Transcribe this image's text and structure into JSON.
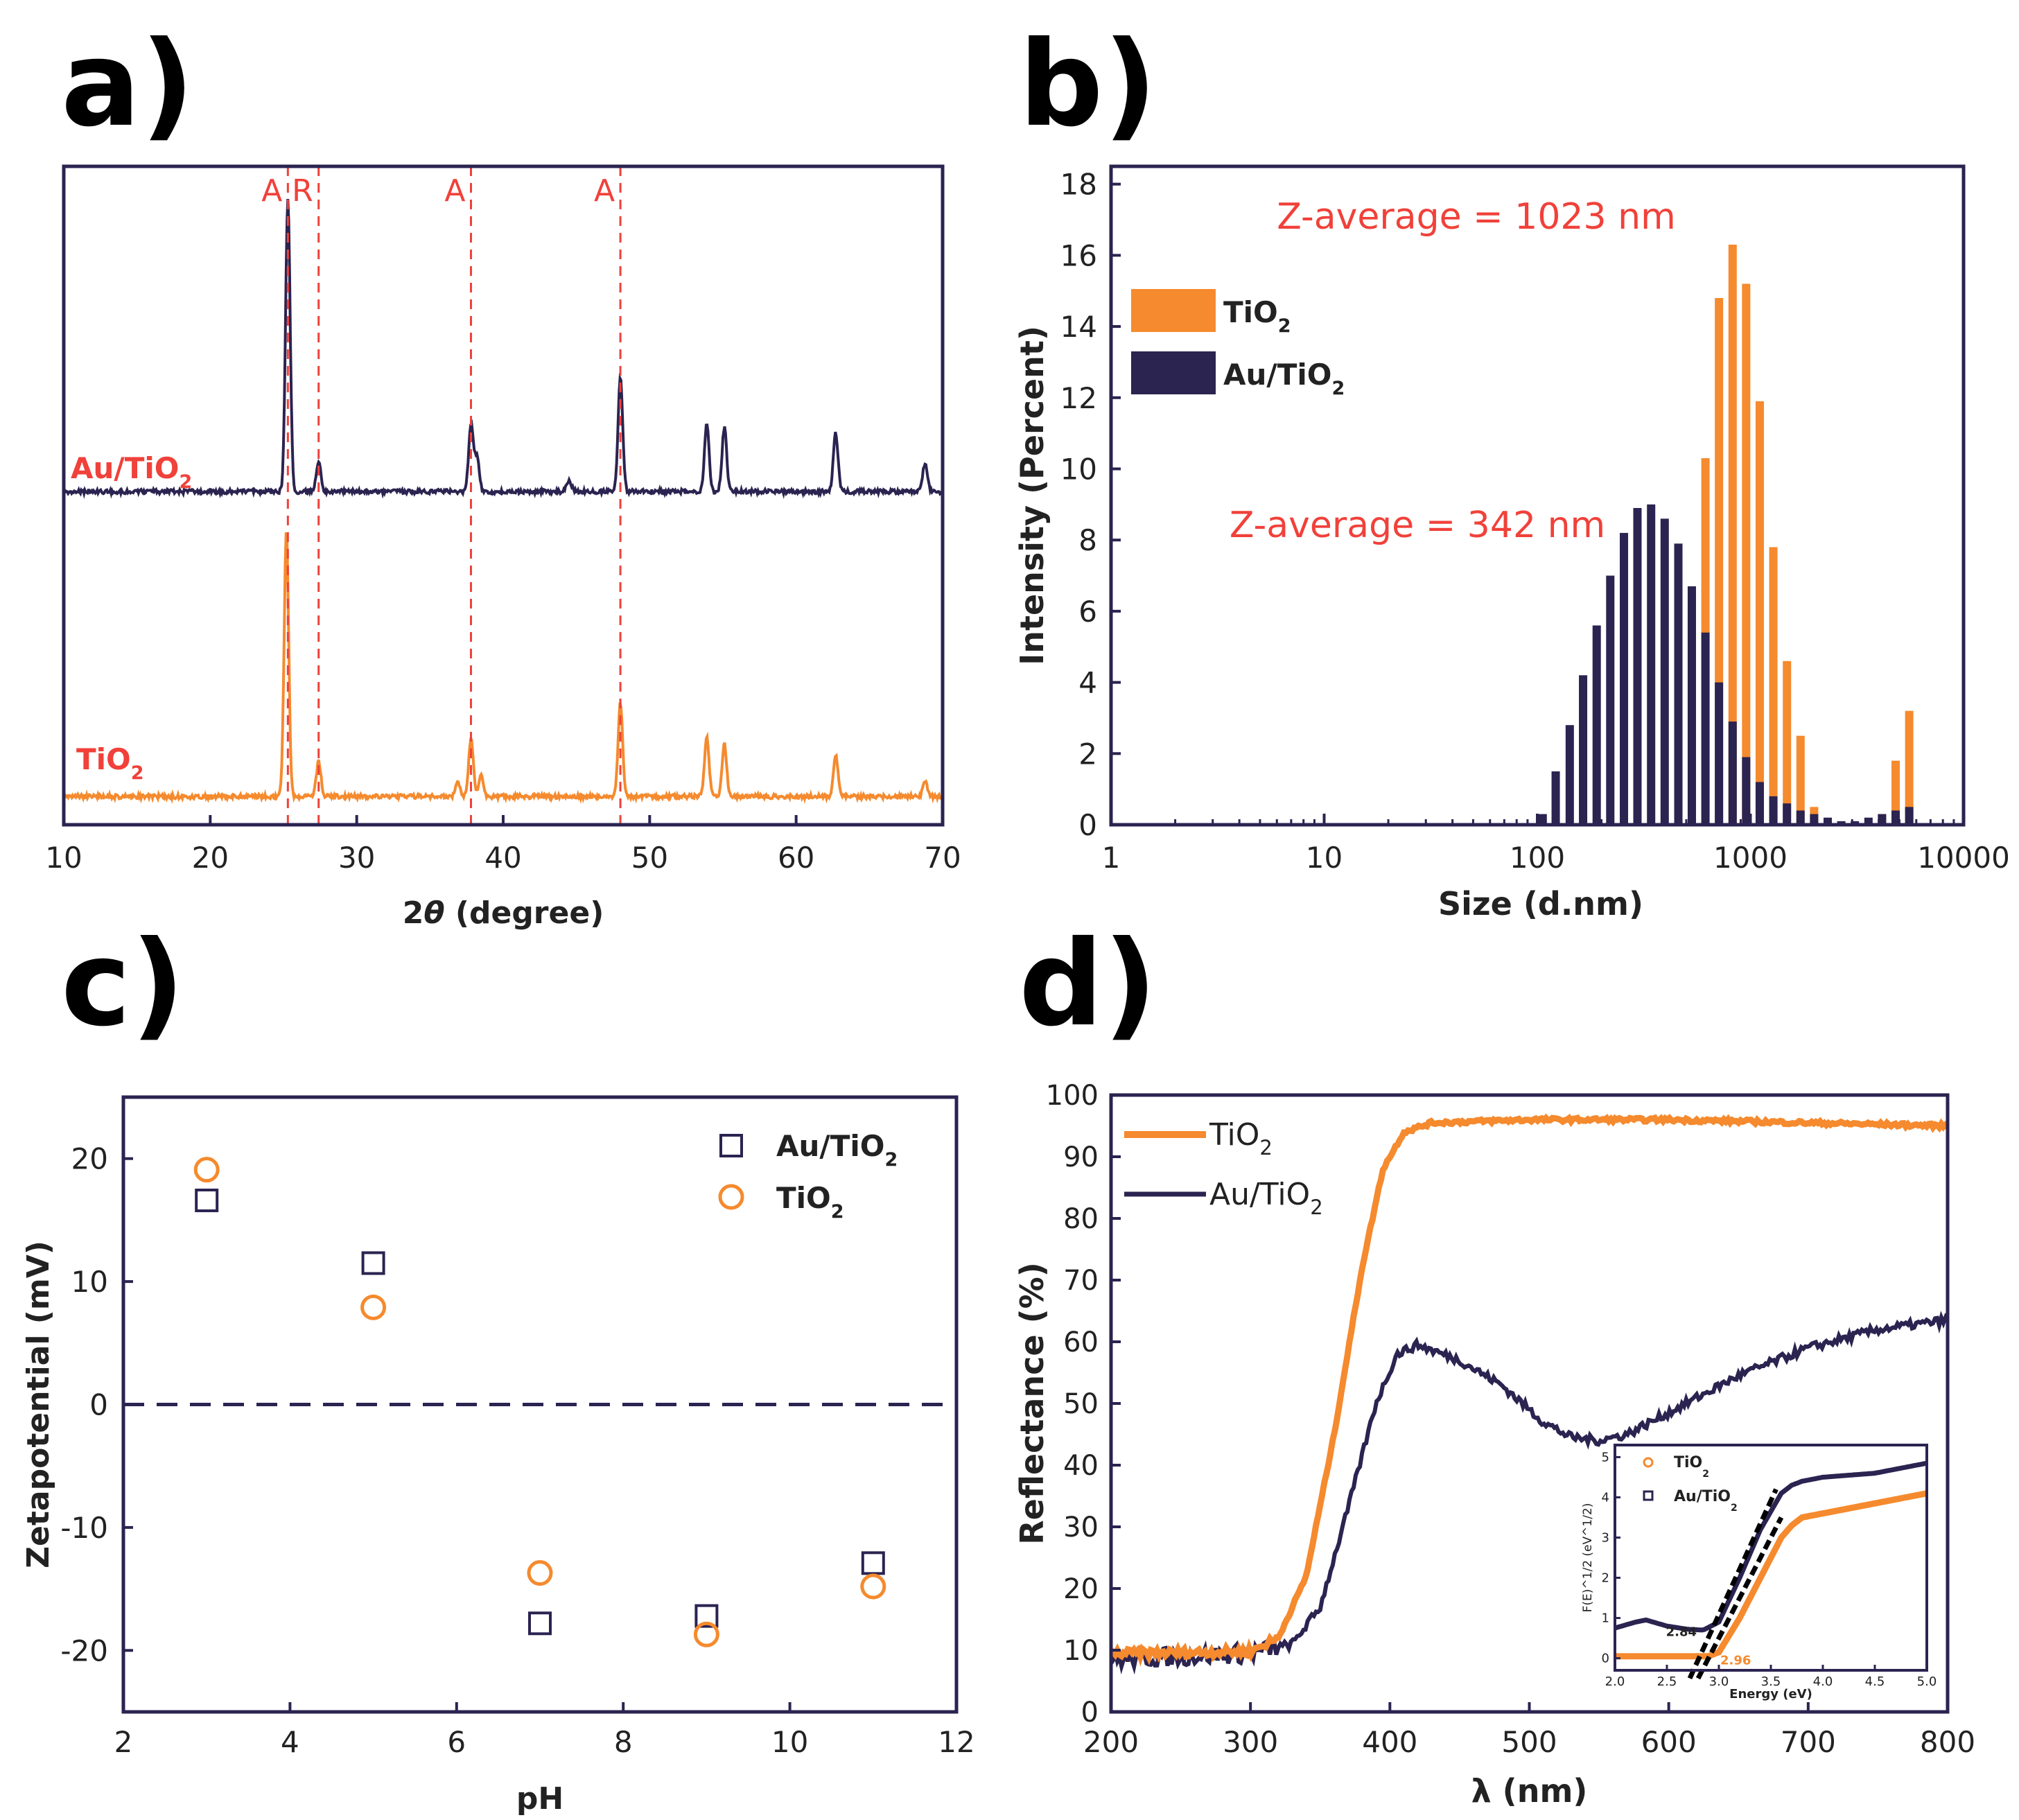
{
  "colors": {
    "au": "#2b2350",
    "tio2": "#f58a2e",
    "red": "#f0413a",
    "frame": "#2b2350",
    "dashed": "#2b2350",
    "black": "#000000"
  },
  "chart_data": [
    {
      "id": "a",
      "panel_label": "a)",
      "type": "line",
      "title": "",
      "xlabel_prefix": "2",
      "xlabel_italic": "θ",
      "xlabel_suffix": " (degree)",
      "ylabel": "",
      "xlim": [
        10,
        70
      ],
      "xticks": [
        10,
        20,
        30,
        40,
        50,
        60,
        70
      ],
      "yticks": [],
      "grid": false,
      "reference_lines": [
        {
          "x": 25.3,
          "label": "A"
        },
        {
          "x": 27.4,
          "label": "R"
        },
        {
          "x": 37.8,
          "label": "A"
        },
        {
          "x": 48.0,
          "label": "A"
        }
      ],
      "series": [
        {
          "name": "Au/TiO2",
          "label_base": "Au/TiO",
          "label_sub": "2",
          "color": "au",
          "offset": 1.0,
          "peaks": [
            [
              25.3,
              1.0
            ],
            [
              27.4,
              0.1
            ],
            [
              37.8,
              0.23
            ],
            [
              38.2,
              0.12
            ],
            [
              44.5,
              0.04
            ],
            [
              48.0,
              0.39
            ],
            [
              53.9,
              0.23
            ],
            [
              55.1,
              0.22
            ],
            [
              62.7,
              0.2
            ],
            [
              68.8,
              0.1
            ]
          ]
        },
        {
          "name": "TiO2",
          "label_base": "TiO",
          "label_sub": "2",
          "color": "tio2",
          "offset": 0.0,
          "peaks": [
            [
              25.2,
              0.91
            ],
            [
              27.4,
              0.12
            ],
            [
              36.9,
              0.05
            ],
            [
              37.8,
              0.2
            ],
            [
              38.5,
              0.07
            ],
            [
              48.0,
              0.32
            ],
            [
              53.9,
              0.2
            ],
            [
              55.1,
              0.18
            ],
            [
              62.7,
              0.14
            ],
            [
              68.8,
              0.05
            ]
          ]
        }
      ]
    },
    {
      "id": "b",
      "panel_label": "b)",
      "type": "bar",
      "title": "",
      "xlabel": "Size (d.nm)",
      "ylabel": "Intensity (Percent)",
      "xscale": "log",
      "xlim": [
        1,
        10000
      ],
      "ylim": [
        0,
        18.5
      ],
      "xticks": [
        1,
        10,
        100,
        1000,
        10000
      ],
      "yticks": [
        0,
        2,
        4,
        6,
        8,
        10,
        12,
        14,
        16,
        18
      ],
      "grid": false,
      "legend": "upper-left",
      "annotations": [
        {
          "text": "Z-average = 1023 nm",
          "near": "TiO2 peak"
        },
        {
          "text": "Z-average = 342 nm",
          "near": "Au/TiO2 peak"
        }
      ],
      "series": [
        {
          "name": "TiO2",
          "label_base": "TiO",
          "label_sub": "2",
          "color": "tio2",
          "x": [
            459,
            531,
            615,
            712,
            825,
            955,
            1106,
            1281,
            1484,
            1718,
            1990,
            4145,
            4801,
            5560
          ],
          "values": [
            2.8,
            6.0,
            10.3,
            14.8,
            16.3,
            15.2,
            11.9,
            7.8,
            4.6,
            2.5,
            0.5,
            0.3,
            1.8,
            3.2
          ]
        },
        {
          "name": "Au/TiO2",
          "label_base": "Au/TiO",
          "label_sub": "2",
          "color": "au",
          "x": [
            106,
            122,
            142,
            164,
            190,
            220,
            255,
            295,
            342,
            396,
            459,
            531,
            615,
            712,
            825,
            955,
            1106,
            1281,
            1484,
            1718,
            1990,
            2305,
            2669,
            3091,
            3580,
            4145,
            4801,
            5560
          ],
          "values": [
            0.3,
            1.5,
            2.8,
            4.2,
            5.6,
            7.0,
            8.2,
            8.9,
            9.0,
            8.6,
            7.9,
            6.7,
            5.4,
            4.0,
            2.9,
            1.9,
            1.2,
            0.8,
            0.6,
            0.4,
            0.3,
            0.2,
            0.1,
            0.1,
            0.2,
            0.3,
            0.4,
            0.5
          ]
        }
      ]
    },
    {
      "id": "c",
      "panel_label": "c)",
      "type": "scatter",
      "title": "",
      "xlabel": "pH",
      "ylabel": "Zetapotential (mV)",
      "xlim": [
        2,
        12
      ],
      "ylim": [
        -25,
        25
      ],
      "xticks": [
        2,
        4,
        6,
        8,
        10,
        12
      ],
      "yticks": [
        -20,
        -10,
        0,
        10,
        20
      ],
      "grid": false,
      "zero_line": 0,
      "legend": "top-right",
      "series": [
        {
          "name": "Au/TiO2",
          "label_base": "Au/TiO",
          "label_sub": "2",
          "marker": "square",
          "color": "au",
          "x": [
            3,
            5,
            7,
            9,
            11
          ],
          "values": [
            16.6,
            11.5,
            -17.8,
            -17.2,
            -12.9
          ]
        },
        {
          "name": "TiO2",
          "label_base": "TiO",
          "label_sub": "2",
          "marker": "circle",
          "color": "tio2",
          "x": [
            3,
            5,
            7,
            9,
            11
          ],
          "values": [
            19.1,
            7.9,
            -13.7,
            -18.7,
            -14.8
          ]
        }
      ]
    },
    {
      "id": "d",
      "panel_label": "d)",
      "type": "line",
      "title": "",
      "xlabel": "λ (nm)",
      "ylabel": "Reflectance (%)",
      "xlim": [
        200,
        800
      ],
      "ylim": [
        0,
        100
      ],
      "xticks": [
        200,
        300,
        400,
        500,
        600,
        700,
        800
      ],
      "yticks": [
        0,
        10,
        20,
        30,
        40,
        50,
        60,
        70,
        80,
        90,
        100
      ],
      "grid": false,
      "legend": "top-left",
      "series": [
        {
          "name": "TiO2",
          "label_base": "TiO",
          "label_sub": "2",
          "color": "tio2",
          "x": [
            200,
            250,
            300,
            320,
            340,
            360,
            380,
            395,
            410,
            430,
            500,
            600,
            700,
            800
          ],
          "values": [
            9.5,
            9.6,
            9.8,
            12,
            22,
            45,
            72,
            88,
            94,
            95.5,
            96,
            96,
            95.5,
            95
          ]
        },
        {
          "name": "Au/TiO2",
          "label_base": "Au/TiO",
          "label_sub": "2",
          "color": "au",
          "x": [
            200,
            250,
            300,
            330,
            350,
            370,
            390,
            405,
            420,
            450,
            480,
            510,
            530,
            550,
            570,
            600,
            650,
            700,
            750,
            800
          ],
          "values": [
            8.5,
            9.0,
            9.5,
            11,
            17,
            33,
            50,
            58,
            59.5,
            57,
            53,
            47,
            44.5,
            44,
            45,
            48.5,
            54.5,
            59,
            62,
            63.5
          ]
        }
      ],
      "inset": {
        "type": "line",
        "xlabel": "Energy (eV)",
        "ylabel": "F(E)^1/2 (eV^1/2)",
        "xlim": [
          2.0,
          5.0
        ],
        "ylim": [
          -0.3,
          5.3
        ],
        "xticks": [
          2.0,
          2.5,
          3.0,
          3.5,
          4.0,
          4.5,
          5.0
        ],
        "yticks": [
          0,
          1,
          2,
          3,
          4,
          5
        ],
        "bandgap_labels": [
          {
            "text": "2.84",
            "x": 2.84
          },
          {
            "text": "2.96",
            "x": 2.96
          }
        ],
        "series": [
          {
            "name": "TiO2",
            "label_base": "TiO",
            "label_sub": "2",
            "marker": "circle",
            "color": "tio2",
            "x": [
              2.0,
              2.5,
              2.9,
              3.0,
              3.2,
              3.4,
              3.6,
              3.7,
              3.8,
              4.0,
              4.5,
              5.0
            ],
            "values": [
              0.05,
              0.05,
              0.05,
              0.15,
              1.0,
              2.0,
              3.0,
              3.3,
              3.5,
              3.6,
              3.85,
              4.1
            ]
          },
          {
            "name": "Au/TiO2",
            "label_base": "Au/TiO",
            "label_sub": "2",
            "marker": "square",
            "color": "au",
            "x": [
              2.0,
              2.2,
              2.3,
              2.5,
              2.7,
              2.85,
              3.0,
              3.2,
              3.4,
              3.6,
              3.7,
              3.8,
              4.0,
              4.5,
              5.0
            ],
            "values": [
              0.75,
              0.9,
              0.95,
              0.8,
              0.72,
              0.7,
              0.9,
              2.0,
              3.2,
              4.1,
              4.3,
              4.4,
              4.5,
              4.6,
              4.85
            ]
          }
        ],
        "fits": [
          {
            "x": [
              2.72,
              3.55
            ],
            "values": [
              -0.5,
              4.2
            ]
          },
          {
            "x": [
              2.8,
              3.6
            ],
            "values": [
              -0.5,
              3.5
            ]
          }
        ]
      }
    }
  ]
}
